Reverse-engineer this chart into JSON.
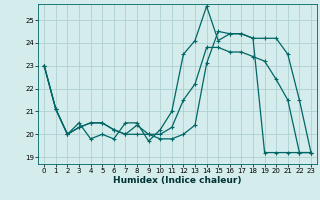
{
  "title": "",
  "xlabel": "Humidex (Indice chaleur)",
  "bg_color": "#d4ecec",
  "grid_color": "#a8cccc",
  "line_color": "#006666",
  "xlim": [
    -0.5,
    23.5
  ],
  "ylim": [
    18.7,
    25.7
  ],
  "xticks": [
    0,
    1,
    2,
    3,
    4,
    5,
    6,
    7,
    8,
    9,
    10,
    11,
    12,
    13,
    14,
    15,
    16,
    17,
    18,
    19,
    20,
    21,
    22,
    23
  ],
  "yticks": [
    19,
    20,
    21,
    22,
    23,
    24,
    25
  ],
  "line1_x": [
    0,
    1,
    2,
    3,
    4,
    5,
    6,
    7,
    8,
    9,
    10,
    11,
    12,
    13,
    14,
    15,
    16,
    17,
    18,
    19,
    20,
    21,
    22,
    23
  ],
  "line1_y": [
    23.0,
    21.1,
    20.0,
    20.5,
    19.8,
    20.0,
    19.8,
    20.5,
    20.5,
    19.7,
    20.2,
    21.0,
    23.5,
    24.1,
    25.6,
    24.1,
    24.4,
    24.4,
    24.2,
    24.2,
    24.2,
    23.5,
    21.5,
    19.2
  ],
  "line2_x": [
    0,
    1,
    2,
    3,
    4,
    5,
    6,
    7,
    8,
    9,
    10,
    11,
    12,
    13,
    14,
    15,
    16,
    17,
    18,
    19,
    20,
    21,
    22,
    23
  ],
  "line2_y": [
    23.0,
    21.1,
    20.0,
    20.3,
    20.5,
    20.5,
    20.2,
    20.0,
    20.4,
    20.0,
    19.8,
    19.8,
    20.0,
    20.4,
    23.1,
    24.5,
    24.4,
    24.4,
    24.2,
    19.2,
    19.2,
    19.2,
    19.2,
    19.2
  ],
  "line3_x": [
    0,
    1,
    2,
    3,
    4,
    5,
    6,
    7,
    8,
    9,
    10,
    11,
    12,
    13,
    14,
    15,
    16,
    17,
    18,
    19,
    20,
    21,
    22,
    23
  ],
  "line3_y": [
    23.0,
    21.1,
    20.0,
    20.3,
    20.5,
    20.5,
    20.2,
    20.0,
    20.0,
    20.0,
    20.0,
    20.3,
    21.5,
    22.2,
    23.8,
    23.8,
    23.6,
    23.6,
    23.4,
    23.2,
    22.4,
    21.5,
    19.2,
    19.2
  ]
}
